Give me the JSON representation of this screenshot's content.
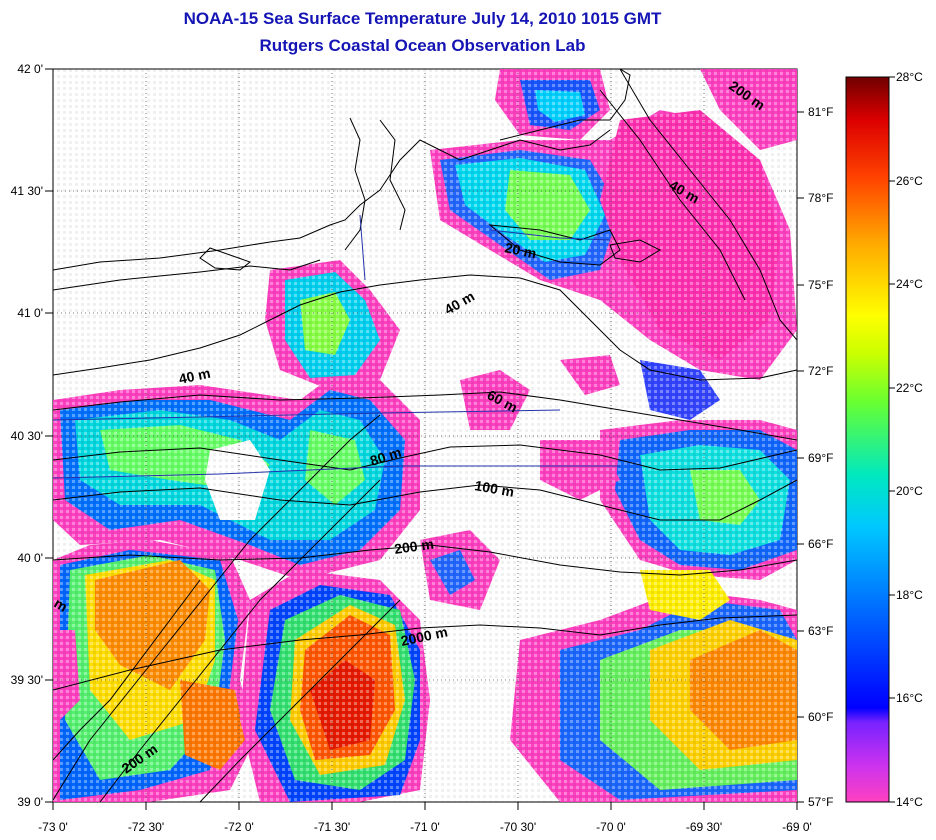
{
  "header": {
    "title": "NOAA-15 Sea Surface Temperature July 14, 2010 1015 GMT",
    "subtitle": "Rutgers Coastal Ocean Observation Lab"
  },
  "map": {
    "lon_range": [
      -73,
      -69
    ],
    "lat_range": [
      39,
      42
    ],
    "lon_tick_labels": [
      "-73 0'",
      "-72 30'",
      "-72 0'",
      "-71 30'",
      "-71 0'",
      "-70 30'",
      "-70 0'",
      "-69 30'",
      "-69 0'"
    ],
    "lat_tick_labels": [
      "39 0'",
      "39 30'",
      "40 0'",
      "40 30'",
      "41 0'",
      "41 30'",
      "42 0'"
    ],
    "grid": "dotted",
    "contour_labels": [
      "200 m",
      "40 m",
      "20 m",
      "40 m",
      "40 m",
      "60 m",
      "80 m",
      "100 m",
      "200 m",
      "2000 m",
      "200 m",
      "m"
    ]
  },
  "colorbar": {
    "celsius_labels": [
      "28°C",
      "26°C",
      "24°C",
      "22°C",
      "20°C",
      "18°C",
      "16°C",
      "14°C"
    ],
    "fahrenheit_labels": [
      "81°F",
      "78°F",
      "75°F",
      "72°F",
      "69°F",
      "66°F",
      "63°F",
      "60°F",
      "57°F"
    ],
    "colors": [
      "#ff33cc",
      "#9933ff",
      "#0000ff",
      "#0088ff",
      "#00e0e0",
      "#33ff66",
      "#ccff00",
      "#ffff00",
      "#ff9900",
      "#ff3300",
      "#dd0000",
      "#770000"
    ]
  }
}
